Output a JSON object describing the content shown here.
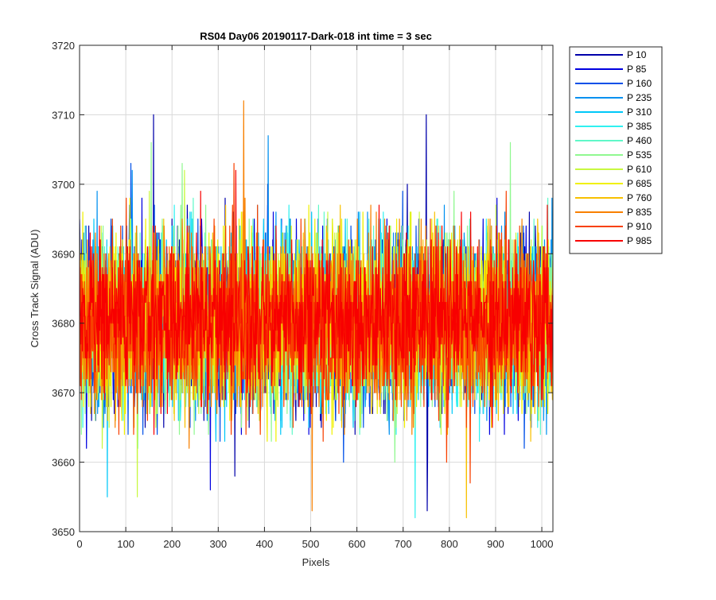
{
  "chart_data": {
    "type": "line",
    "title": "RS04 Day06 20190117-Dark-018 int time = 3 sec",
    "xlabel": "Pixels",
    "ylabel": "Cross Track Signal (ADU)",
    "xlim": [
      0,
      1024
    ],
    "ylim": [
      3650,
      3720
    ],
    "xticks": [
      0,
      100,
      200,
      300,
      400,
      500,
      600,
      700,
      800,
      900,
      1000
    ],
    "yticks": [
      3650,
      3660,
      3670,
      3680,
      3690,
      3700,
      3710,
      3720
    ],
    "grid": true,
    "legend_position": "outside-top-right",
    "series": [
      {
        "name": "P 10",
        "color": "#0000AA",
        "mean": 3680,
        "spread": 9.5,
        "extremes": [
          [
            160,
            3710
          ],
          [
            750,
            3710
          ],
          [
            752,
            3653
          ]
        ]
      },
      {
        "name": "P 85",
        "color": "#0000E0",
        "mean": 3680,
        "spread": 9.5,
        "extremes": [
          [
            283,
            3656
          ]
        ]
      },
      {
        "name": "P 160",
        "color": "#0050E8",
        "mean": 3680,
        "spread": 9.5,
        "extremes": []
      },
      {
        "name": "P 235",
        "color": "#0090F0",
        "mean": 3680,
        "spread": 9.5,
        "extremes": [
          [
            408,
            3707
          ]
        ]
      },
      {
        "name": "P 310",
        "color": "#00C8F8",
        "mean": 3680,
        "spread": 9.5,
        "extremes": [
          [
            60,
            3655
          ]
        ]
      },
      {
        "name": "P 385",
        "color": "#30F0F0",
        "mean": 3680,
        "spread": 9.5,
        "extremes": []
      },
      {
        "name": "P 460",
        "color": "#60F8C8",
        "mean": 3680,
        "spread": 9.5,
        "extremes": []
      },
      {
        "name": "P 535",
        "color": "#90F890",
        "mean": 3680,
        "spread": 9.5,
        "extremes": [
          [
            155,
            3706
          ],
          [
            932,
            3706
          ]
        ]
      },
      {
        "name": "P 610",
        "color": "#C8F840",
        "mean": 3680,
        "spread": 9.5,
        "extremes": [
          [
            125,
            3655
          ]
        ]
      },
      {
        "name": "P 685",
        "color": "#F0F000",
        "mean": 3680,
        "spread": 9.5,
        "extremes": []
      },
      {
        "name": "P 760",
        "color": "#F8C000",
        "mean": 3680,
        "spread": 9.5,
        "extremes": []
      },
      {
        "name": "P 835",
        "color": "#F88000",
        "mean": 3680,
        "spread": 9.5,
        "extremes": [
          [
            355,
            3712
          ],
          [
            503,
            3653
          ]
        ]
      },
      {
        "name": "P 910",
        "color": "#F84000",
        "mean": 3680,
        "spread": 9.5,
        "extremes": [
          [
            845,
            3657
          ]
        ]
      },
      {
        "name": "P 985",
        "color": "#F80000",
        "mean": 3681,
        "spread": 9.0,
        "extremes": []
      }
    ]
  }
}
